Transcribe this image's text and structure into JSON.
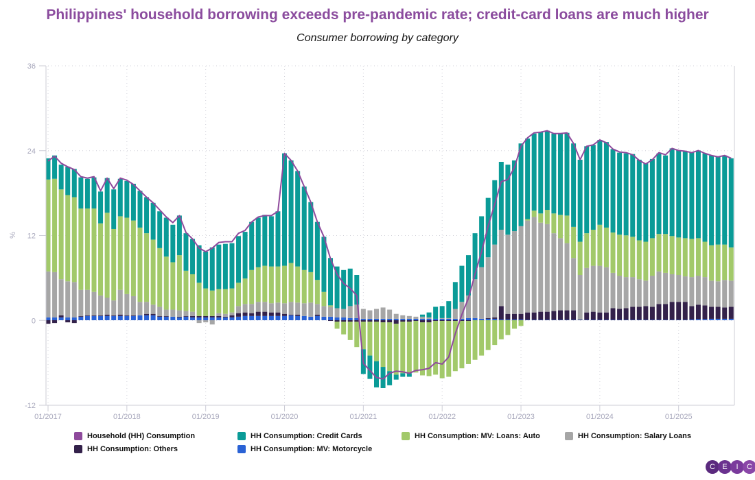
{
  "chart_data": {
    "type": "bar",
    "subtype": "stacked bar with line",
    "title": "Philippines' household borrowing exceeds pre-pandemic rate; credit-card loans are much higher",
    "subtitle": "Consumer borrowing by category",
    "ylabel": "%",
    "xlabel": "",
    "ylim": [
      -12,
      36
    ],
    "yticks": [
      "36",
      "24",
      "12",
      "0",
      "-12"
    ],
    "ytick_values": [
      36,
      24,
      12,
      0,
      -12
    ],
    "x_start": "01/2017",
    "x_end": "09/2025",
    "frequency": "monthly",
    "xtick_labels": [
      "01/2017",
      "01/2018",
      "01/2019",
      "01/2020",
      "01/2021",
      "01/2022",
      "01/2023",
      "01/2024",
      "01/2025"
    ],
    "grid": true,
    "legend_position": "bottom",
    "line_series": {
      "name": "Household (HH) Consumption",
      "color": "#8E4A9C",
      "values": [
        22.5,
        23.2,
        22.2,
        21.7,
        21.3,
        20.3,
        20.1,
        20.3,
        18.3,
        20.1,
        18.6,
        20.1,
        19.8,
        19.2,
        18.3,
        17.4,
        16.6,
        15.6,
        14.6,
        13.8,
        14.8,
        12.4,
        11.5,
        10.2,
        9.7,
        10.2,
        11.0,
        11.1,
        11.1,
        12.3,
        12.7,
        13.9,
        14.6,
        14.8,
        14.8,
        15.4,
        23.6,
        22.6,
        21.1,
        18.9,
        16.7,
        13.9,
        11.8,
        8.7,
        6.5,
        5.2,
        4.5,
        3.5,
        -6.1,
        -7.1,
        -8.1,
        -8.3,
        -7.5,
        -7.2,
        -7.3,
        -7.5,
        -7.1,
        -7.0,
        -6.8,
        -6.0,
        -6.2,
        -5.2,
        -1.9,
        0.8,
        3.1,
        6.5,
        9.7,
        13.3,
        16.4,
        19.6,
        19.9,
        21.6,
        24.6,
        25.8,
        26.5,
        26.6,
        26.8,
        26.4,
        26.4,
        26.5,
        25.0,
        22.7,
        24.6,
        24.8,
        25.5,
        25.1,
        24.2,
        23.8,
        23.7,
        23.4,
        22.6,
        22.1,
        22.7,
        23.7,
        23.4,
        24.3,
        24.0,
        23.9,
        23.7,
        24.0,
        23.6,
        23.3,
        23.1,
        23.3,
        22.9
      ]
    },
    "series": [
      {
        "name": "HH Consumption: MV: Motorcycle",
        "color": "#2A62D5",
        "values": [
          0.4,
          0.4,
          0.4,
          0.4,
          0.4,
          0.5,
          0.6,
          0.6,
          0.6,
          0.6,
          0.6,
          0.6,
          0.6,
          0.6,
          0.7,
          0.7,
          0.7,
          0.5,
          0.5,
          0.5,
          0.4,
          0.5,
          0.4,
          0.4,
          0.4,
          0.4,
          0.4,
          0.4,
          0.4,
          0.5,
          0.6,
          0.6,
          0.6,
          0.6,
          0.6,
          0.6,
          0.6,
          0.7,
          0.6,
          0.6,
          0.5,
          0.6,
          0.5,
          0.5,
          0.4,
          0.4,
          0.3,
          0.3,
          0.2,
          0.2,
          0.2,
          0.2,
          0.2,
          0.2,
          0.2,
          0.2,
          0.2,
          0.2,
          0.2,
          0.2,
          0.2,
          0.2,
          0.2,
          0.2,
          0.3,
          0.3,
          0.2,
          0.2,
          0.2,
          0.1,
          0.1,
          0.1,
          0.1,
          0.05,
          0.05,
          0.05,
          0.05,
          0.05,
          0.05,
          0.05,
          0.05,
          0.05,
          0.05,
          0.05,
          0.05,
          0.05,
          0.05,
          0.05,
          0.05,
          0.05,
          0.05,
          0.05,
          0.05,
          0.05,
          0.05,
          0.05,
          0.05,
          0.05,
          0.1,
          0.15,
          0.15,
          0.2,
          0.2,
          0.2,
          0.2
        ]
      },
      {
        "name": "HH Consumption: Others",
        "color": "#33214A",
        "values": [
          -0.5,
          -0.4,
          0.3,
          -0.3,
          -0.4,
          0.1,
          0.1,
          0.1,
          0.1,
          0.2,
          0.1,
          0.2,
          0.1,
          0.1,
          0.0,
          0.2,
          0.2,
          0.1,
          0.1,
          0.0,
          0.1,
          0.1,
          0.2,
          0.2,
          0.2,
          0.2,
          0.2,
          0.1,
          0.3,
          0.5,
          0.5,
          0.4,
          0.6,
          0.6,
          0.5,
          0.5,
          0.3,
          0.1,
          0.2,
          0.0,
          0.0,
          0.2,
          0.0,
          -0.1,
          -0.2,
          -0.2,
          -0.2,
          -0.2,
          -0.2,
          -0.2,
          -0.2,
          -0.3,
          -0.3,
          -0.5,
          -0.2,
          -0.2,
          -0.1,
          -0.3,
          -0.3,
          -0.1,
          -0.1,
          -0.1,
          -0.1,
          -0.1,
          -0.1,
          0.0,
          0.0,
          0.1,
          0.2,
          1.9,
          0.8,
          0.8,
          0.8,
          1.05,
          1.05,
          1.15,
          1.15,
          1.25,
          1.35,
          1.35,
          1.35,
          0.05,
          1.05,
          1.15,
          1.05,
          1.05,
          1.65,
          1.55,
          1.65,
          1.85,
          1.85,
          1.95,
          1.85,
          2.25,
          2.25,
          2.55,
          2.55,
          2.55,
          1.9,
          2.05,
          1.95,
          1.7,
          1.7,
          1.6,
          1.7
        ]
      },
      {
        "name": "HH Consumption: Salary Loans",
        "color": "#A6A6A6",
        "values": [
          6.5,
          6.4,
          5.1,
          5.1,
          5.0,
          3.7,
          3.6,
          3.3,
          2.8,
          2.4,
          2.1,
          3.5,
          3.0,
          2.7,
          1.9,
          1.7,
          1.3,
          1.3,
          0.9,
          1.0,
          0.9,
          0.7,
          0.6,
          -0.4,
          -0.3,
          -0.6,
          0.4,
          0.4,
          0.4,
          1.0,
          1.2,
          1.3,
          1.4,
          1.4,
          1.3,
          1.4,
          1.5,
          1.8,
          1.7,
          1.8,
          2.0,
          1.5,
          1.5,
          1.4,
          1.3,
          1.2,
          1.7,
          1.9,
          1.4,
          1.2,
          1.4,
          1.6,
          1.3,
          0.7,
          0.5,
          0.4,
          0.3,
          0.3,
          0.2,
          0.0,
          0.1,
          0.1,
          1.4,
          2.4,
          3.2,
          5.5,
          7.3,
          8.6,
          10.3,
          10.8,
          11.2,
          11.7,
          12.4,
          13.0,
          13.5,
          12.6,
          12.4,
          11.0,
          10.2,
          9.5,
          7.4,
          6.3,
          6.3,
          6.5,
          6.6,
          6.4,
          5.0,
          4.7,
          4.4,
          4.2,
          3.9,
          3.6,
          4.4,
          4.6,
          4.4,
          3.9,
          3.8,
          3.6,
          4.1,
          4.1,
          4.0,
          3.7,
          3.6,
          3.9,
          3.7
        ]
      },
      {
        "name": "HH Consumption: MV: Loans: Auto",
        "color": "#A2C96A",
        "values": [
          13.0,
          13.2,
          12.7,
          12.2,
          12.0,
          11.5,
          11.5,
          11.8,
          10.2,
          12.0,
          10.1,
          10.4,
          10.8,
          10.7,
          10.5,
          9.7,
          9.2,
          8.3,
          7.5,
          6.7,
          7.8,
          5.7,
          5.3,
          4.7,
          3.9,
          3.6,
          3.4,
          3.5,
          3.4,
          3.3,
          3.6,
          4.8,
          4.9,
          5.1,
          5.2,
          5.1,
          5.3,
          5.5,
          5.1,
          4.7,
          4.3,
          3.4,
          2.0,
          0.2,
          -1.0,
          -1.8,
          -2.6,
          -3.6,
          -3.9,
          -4.8,
          -5.6,
          -6.3,
          -6.9,
          -7.2,
          -7.3,
          -7.3,
          -7.3,
          -7.5,
          -7.6,
          -7.6,
          -8.1,
          -7.9,
          -7.1,
          -6.7,
          -6.1,
          -5.6,
          -5.0,
          -4.2,
          -3.5,
          -2.7,
          -2.1,
          -1.2,
          -0.8,
          0.2,
          0.9,
          1.3,
          2.0,
          2.8,
          3.3,
          3.9,
          4.4,
          4.7,
          4.9,
          5.1,
          5.8,
          5.6,
          5.7,
          5.8,
          5.9,
          5.7,
          5.5,
          5.5,
          5.3,
          5.3,
          5.5,
          5.4,
          5.3,
          5.4,
          5.4,
          5.3,
          5.0,
          5.0,
          5.2,
          5.0,
          4.7
        ]
      },
      {
        "name": "HH Consumption: Credit Cards",
        "color": "#0A9B97",
        "values": [
          3.0,
          3.3,
          3.5,
          4.0,
          4.0,
          4.4,
          4.2,
          4.4,
          4.5,
          4.9,
          5.6,
          5.3,
          5.2,
          5.2,
          5.2,
          5.1,
          5.2,
          5.2,
          5.5,
          5.3,
          5.6,
          5.3,
          5.0,
          5.3,
          5.2,
          6.1,
          6.3,
          6.4,
          6.4,
          6.6,
          6.6,
          6.8,
          7.0,
          7.2,
          7.1,
          7.8,
          15.9,
          14.5,
          13.5,
          11.8,
          9.9,
          8.2,
          7.8,
          6.7,
          5.9,
          5.5,
          5.3,
          4.2,
          -3.5,
          -3.3,
          -3.7,
          -3.0,
          -2.0,
          -0.7,
          -0.5,
          -0.5,
          0,
          0.3,
          0.7,
          1.7,
          1.7,
          2.4,
          3.8,
          5.1,
          5.7,
          6.5,
          7.2,
          8.4,
          9.1,
          9.6,
          9.9,
          10.0,
          11.7,
          11.4,
          10.9,
          11.5,
          11.2,
          11.3,
          11.5,
          11.7,
          11.8,
          11.6,
          12.3,
          12.0,
          12.0,
          12.1,
          11.8,
          11.6,
          11.6,
          11.7,
          11.4,
          11.1,
          11.2,
          11.4,
          11.1,
          12.4,
          12.3,
          12.3,
          12.2,
          12.4,
          12.5,
          12.7,
          12.4,
          12.6,
          12.6
        ]
      }
    ],
    "legend": [
      {
        "label": "Household (HH) Consumption",
        "color": "#8E4A9C"
      },
      {
        "label": "HH Consumption: Credit Cards",
        "color": "#0A9B97"
      },
      {
        "label": "HH Consumption: MV: Loans: Auto",
        "color": "#A2C96A"
      },
      {
        "label": "HH Consumption: Salary Loans",
        "color": "#A6A6A6"
      },
      {
        "label": "HH Consumption: Others",
        "color": "#33214A"
      },
      {
        "label": "HH Consumption: MV: Motorcycle",
        "color": "#2A62D5"
      }
    ]
  },
  "logo": {
    "letters": [
      "C",
      "E",
      "I",
      "C"
    ],
    "text": "CEIC"
  }
}
